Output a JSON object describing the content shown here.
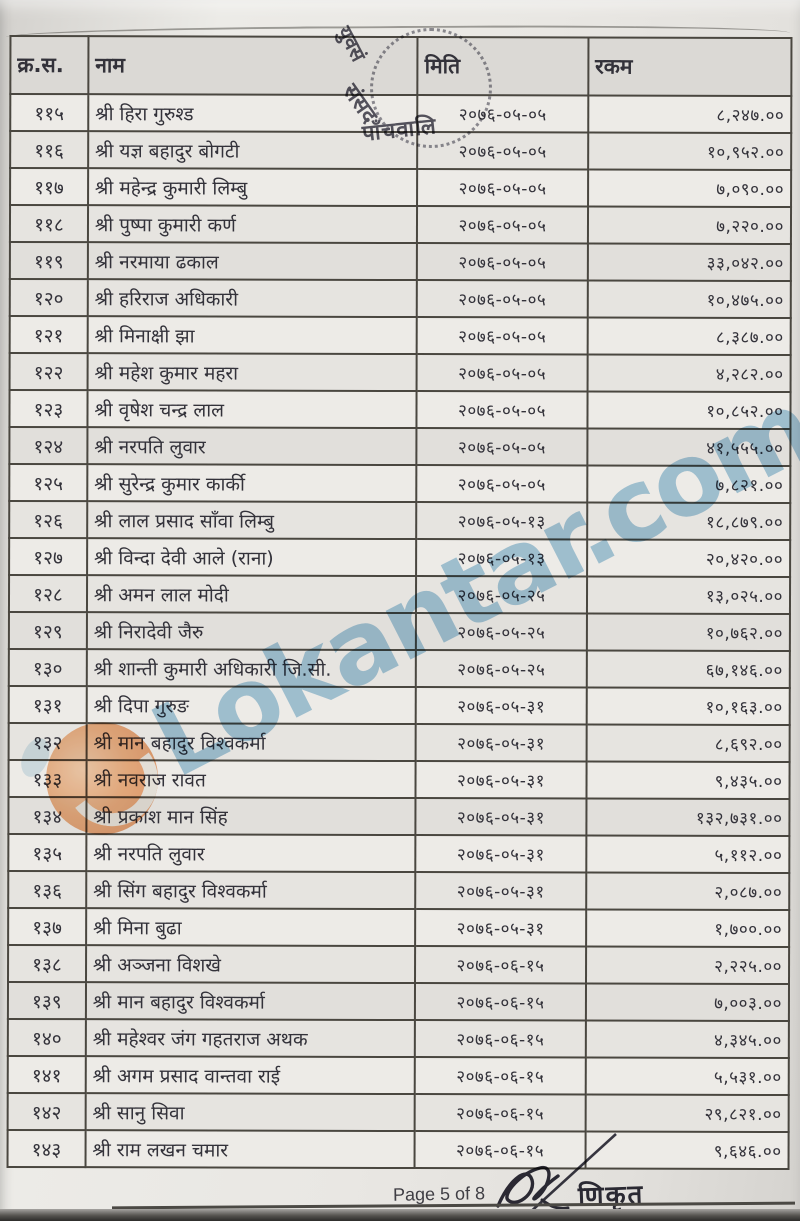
{
  "document": {
    "kind": "scanned payment list (Nepali)",
    "watermark": {
      "text": "Lokantar.com",
      "text_color": "#93c0dc",
      "logo_color": "#ec8f4f"
    },
    "round_stamp": {
      "fragments": [
        "युवसं",
        "संसद",
        "पाँचवालि"
      ]
    },
    "footer": {
      "page_label": "Page 5 of 8",
      "stamp_word": "णिकृत"
    },
    "table": {
      "header": {
        "sn": "क्र.स.",
        "name": "नाम",
        "date": "मिति",
        "amount": "रकम"
      },
      "rows": [
        {
          "sn": "११५",
          "name": "श्री हिरा गुरुश्ड",
          "date": "२०७६-०५-०५",
          "amount": "८,२४७.००"
        },
        {
          "sn": "११६",
          "name": "श्री यज्ञ बहादुर बोगटी",
          "date": "२०७६-०५-०५",
          "amount": "१०,९५२.००"
        },
        {
          "sn": "११७",
          "name": "श्री महेन्द्र कुमारी लिम्बु",
          "date": "२०७६-०५-०५",
          "amount": "७,०९०.००"
        },
        {
          "sn": "११८",
          "name": "श्री पुष्पा कुमारी कर्ण",
          "date": "२०७६-०५-०५",
          "amount": "७,२२०.००"
        },
        {
          "sn": "११९",
          "name": "श्री नरमाया ढकाल",
          "date": "२०७६-०५-०५",
          "amount": "३३,०४२.००"
        },
        {
          "sn": "१२०",
          "name": "श्री हरिराज अधिकारी",
          "date": "२०७६-०५-०५",
          "amount": "१०,४७५.००"
        },
        {
          "sn": "१२१",
          "name": "श्री मिनाक्षी झा",
          "date": "२०७६-०५-०५",
          "amount": "८,३८७.००"
        },
        {
          "sn": "१२२",
          "name": "श्री महेश कुमार महरा",
          "date": "२०७६-०५-०५",
          "amount": "४,२८२.००"
        },
        {
          "sn": "१२३",
          "name": "श्री वृषेश चन्द्र लाल",
          "date": "२०७६-०५-०५",
          "amount": "१०,८५२.००"
        },
        {
          "sn": "१२४",
          "name": "श्री नरपति लुवार",
          "date": "२०७६-०५-०५",
          "amount": "४१,५५५.००"
        },
        {
          "sn": "१२५",
          "name": "श्री सुरेन्द्र कुमार कार्की",
          "date": "२०७६-०५-०५",
          "amount": "७,८२१.००"
        },
        {
          "sn": "१२६",
          "name": "श्री लाल प्रसाद साँवा लिम्बु",
          "date": "२०७६-०५-१३",
          "amount": "१८,८७९.००"
        },
        {
          "sn": "१२७",
          "name": "श्री विन्दा देवी आले (राना)",
          "date": "२०७६-०५-१३",
          "amount": "२०,४२०.००"
        },
        {
          "sn": "१२८",
          "name": "श्री अमन लाल मोदी",
          "date": "२०७६-०५-२५",
          "amount": "१३,०२५.००"
        },
        {
          "sn": "१२९",
          "name": "श्री निरादेवी जैरु",
          "date": "२०७६-०५-२५",
          "amount": "१०,७६२.००"
        },
        {
          "sn": "१३०",
          "name": "श्री शान्ती कुमारी अधिकारी जि.सी.",
          "date": "२०७६-०५-२५",
          "amount": "६७,१४६.००"
        },
        {
          "sn": "१३१",
          "name": "श्री दिपा गुरुङ",
          "date": "२०७६-०५-३१",
          "amount": "१०,१६३.००"
        },
        {
          "sn": "१३२",
          "name": "श्री मान बहादुर विश्वकर्मा",
          "date": "२०७६-०५-३१",
          "amount": "८,६९२.००"
        },
        {
          "sn": "१३३",
          "name": "श्री नवराज रावत",
          "date": "२०७६-०५-३१",
          "amount": "९,४३५.००"
        },
        {
          "sn": "१३४",
          "name": "श्री प्रकाश मान सिंह",
          "date": "२०७६-०५-३१",
          "amount": "१३२,७३१.००"
        },
        {
          "sn": "१३५",
          "name": "श्री नरपति लुवार",
          "date": "२०७६-०५-३१",
          "amount": "५,११२.००"
        },
        {
          "sn": "१३६",
          "name": "श्री सिंग बहादुर विश्वकर्मा",
          "date": "२०७६-०५-३१",
          "amount": "२,०८७.००"
        },
        {
          "sn": "१३७",
          "name": "श्री मिना बुढा",
          "date": "२०७६-०५-३१",
          "amount": "१,७००.००"
        },
        {
          "sn": "१३८",
          "name": "श्री अञ्जना विशखे",
          "date": "२०७६-०६-१५",
          "amount": "२,२२५.००"
        },
        {
          "sn": "१३९",
          "name": "श्री मान बहादुर विश्वकर्मा",
          "date": "२०७६-०६-१५",
          "amount": "७,००३.००"
        },
        {
          "sn": "१४०",
          "name": "श्री महेश्वर जंग गहतराज अथक",
          "date": "२०७६-०६-१५",
          "amount": "४,३४५.००"
        },
        {
          "sn": "१४१",
          "name": "श्री अगम प्रसाद वान्तवा राई",
          "date": "२०७६-०६-१५",
          "amount": "५,५३१.००"
        },
        {
          "sn": "१४२",
          "name": "श्री सानु सिवा",
          "date": "२०७६-०६-१५",
          "amount": "२९,८२१.००"
        },
        {
          "sn": "१४३",
          "name": "श्री राम लखन चमार",
          "date": "२०७६-०६-१५",
          "amount": "९,६४६.००"
        }
      ]
    }
  }
}
